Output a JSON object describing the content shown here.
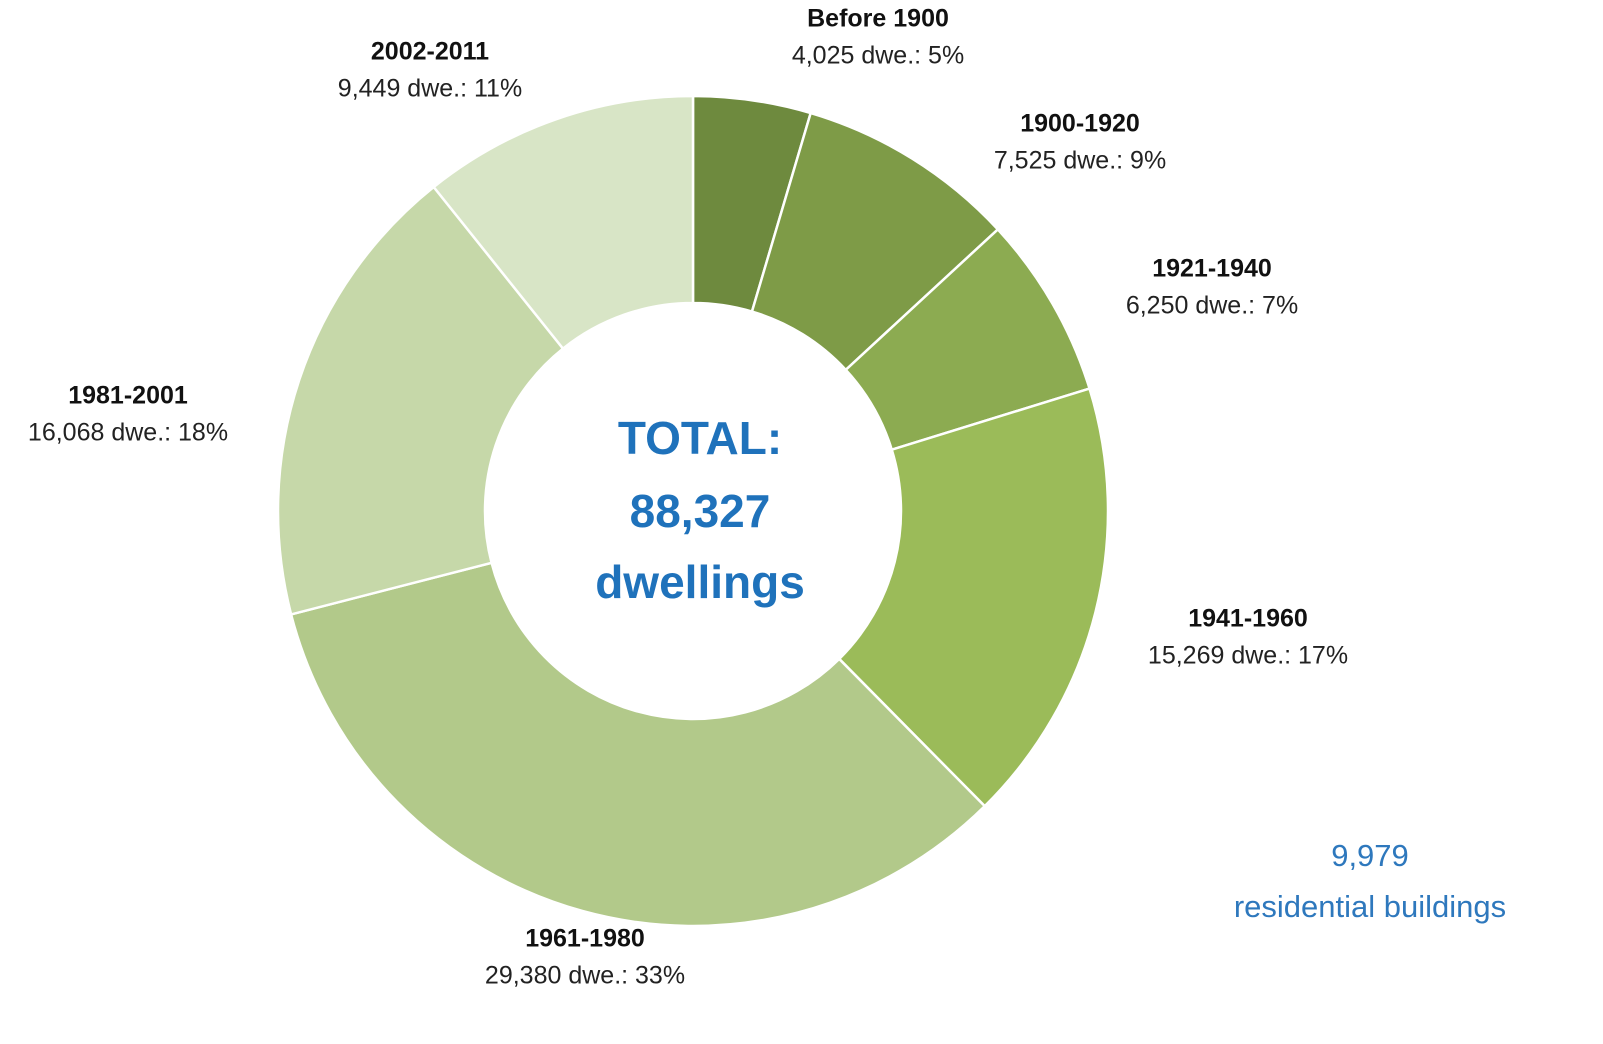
{
  "chart_data": {
    "type": "donut",
    "categories": [
      "Before 1900",
      "1900-1920",
      "1921-1940",
      "1941-1960",
      "1961-1980",
      "1981-2001",
      "2002-2011"
    ],
    "values": [
      4025,
      7525,
      6250,
      15269,
      29380,
      16068,
      9449
    ],
    "value_labels": [
      "4,025 dwe.: 5%",
      "7,525 dwe.: 9%",
      "6,250 dwe.: 7%",
      "15,269 dwe.: 17%",
      "29,380 dwe.: 33%",
      "16,068 dwe.: 18%",
      "9,449 dwe.: 11%"
    ],
    "colors": [
      "#6e8a3e",
      "#7e9b47",
      "#8cab51",
      "#9bbb59",
      "#b2c98a",
      "#c6d8a9",
      "#d8e5c6"
    ],
    "center_label": [
      "TOTAL:",
      "88,327",
      "dwellings"
    ],
    "annotation": [
      "9,979",
      "residential buildings"
    ]
  }
}
